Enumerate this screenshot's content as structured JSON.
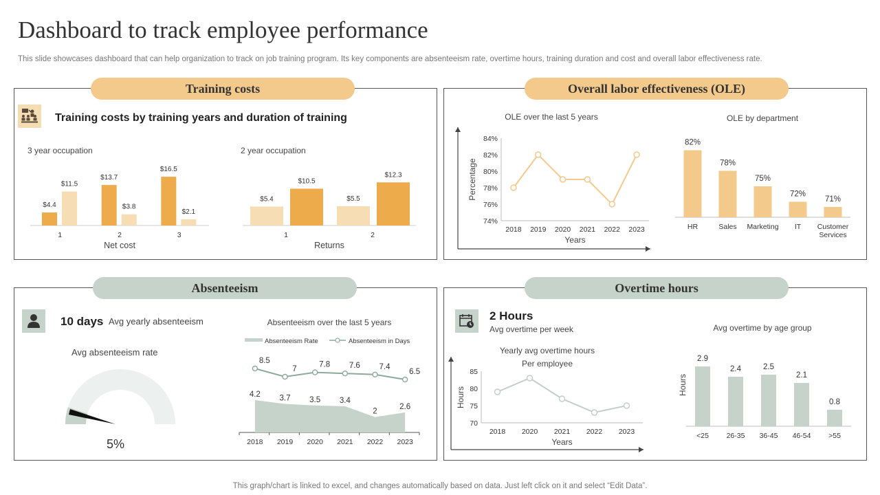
{
  "page": {
    "title": "Dashboard to track employee performance",
    "subtitle": "This slide showcases dashboard that can help organization to track on job training program. Its key components are absenteeism rate, overtime hours, training duration and cost and overall labor effectiveness rate.",
    "footer": "This graph/chart is linked to excel,  and changes automatically based on data. Just left click on it and select “Edit Data”."
  },
  "colors": {
    "orange": "#f4c98c",
    "dark_orange": "#eeab4c",
    "light_orange": "#f6ddb4",
    "green": "#c6d3cb",
    "green_line": "#8fa99a"
  },
  "training": {
    "pill": "Training costs",
    "heading": "Training costs by training years and duration of training",
    "icon": "training-meeting-icon"
  },
  "ole": {
    "pill": "Overall labor effectiveness (OLE)"
  },
  "absenteeism": {
    "pill": "Absenteeism",
    "icon": "person-icon",
    "days_value": "10 days",
    "days_label": "Avg yearly absenteeism",
    "rate_label": "Avg absenteeism rate",
    "rate_value": "5%",
    "rate_fraction": 0.05
  },
  "overtime": {
    "pill": "Overtime hours",
    "icon": "calendar-clock-icon",
    "hours_value": "2 Hours",
    "hours_label": "Avg overtime per week"
  },
  "chart_data": [
    {
      "id": "c1",
      "type": "bar",
      "title": "3 year occupation",
      "xlabel": "Net cost",
      "categories": [
        "1",
        "2",
        "3"
      ],
      "series": [
        {
          "values": [
            4.4,
            13.7,
            16.5
          ],
          "labels": [
            "$4.4",
            "$13.7",
            "$16.5"
          ],
          "color": "#eeab4c"
        },
        {
          "values": [
            11.5,
            3.8,
            2.1
          ],
          "labels": [
            "$11.5",
            "$3.8",
            "$2.1"
          ],
          "color": "#f6ddb4"
        }
      ]
    },
    {
      "id": "c2",
      "type": "bar",
      "title": "2 year occupation",
      "xlabel": "Returns",
      "categories": [
        "1",
        "2"
      ],
      "series": [
        {
          "values": [
            5.4,
            5.5
          ],
          "labels": [
            "$5.4",
            "$5.5"
          ],
          "color": "#f6ddb4"
        },
        {
          "values": [
            10.5,
            12.3
          ],
          "labels": [
            "$10.5",
            "$12.3"
          ],
          "color": "#eeab4c"
        }
      ]
    },
    {
      "id": "c3",
      "type": "line",
      "title": "OLE over  the last 5 years",
      "xlabel": "Years",
      "ylabel": "Percentage",
      "x": [
        "2018",
        "2019",
        "2020",
        "2021",
        "2022",
        "2023"
      ],
      "values": [
        78,
        82,
        79,
        79,
        76,
        82
      ],
      "yticks": [
        "74%",
        "76%",
        "78%",
        "80%",
        "82%",
        "84%"
      ],
      "ylim": [
        74,
        84
      ]
    },
    {
      "id": "c4",
      "type": "bar",
      "title": "OLE by department",
      "categories": [
        "HR",
        "Sales",
        "Marketing",
        "IT",
        "Customer Services"
      ],
      "values": [
        82,
        78,
        75,
        72,
        71
      ],
      "labels": [
        "82%",
        "78%",
        "75%",
        "72%",
        "71%"
      ]
    },
    {
      "id": "c5",
      "type": "area+line",
      "title": "Absenteeism over the last 5 years",
      "x": [
        "2018",
        "2019",
        "2020",
        "2021",
        "2022",
        "2023"
      ],
      "series": [
        {
          "name": "Absenteeism Rate",
          "type": "area",
          "values": [
            4.2,
            3.7,
            3.5,
            3.4,
            2,
            2.6
          ],
          "labels": [
            "4.2",
            "3.7",
            "3.5",
            "3.4",
            "2",
            "2.6"
          ]
        },
        {
          "name": "Absenteeism in Days",
          "type": "line",
          "values": [
            8.5,
            7,
            7.8,
            7.6,
            7.4,
            6.5
          ],
          "labels": [
            "8.5",
            "7",
            "7.8",
            "7.6",
            "7.4",
            "6.5"
          ]
        }
      ]
    },
    {
      "id": "c6",
      "type": "line",
      "title": "Yearly avg  overtime  hours",
      "subtitle": "Per employee",
      "xlabel": "Years",
      "ylabel": "Hours",
      "x": [
        "2018",
        "2020",
        "2021",
        "2022",
        "2023"
      ],
      "values": [
        79,
        83,
        77,
        73,
        75
      ],
      "yticks": [
        "70",
        "75",
        "80",
        "85"
      ],
      "ylim": [
        70,
        85
      ]
    },
    {
      "id": "c7",
      "type": "bar",
      "title": "Avg overtime  by age group",
      "ylabel": "Hours",
      "categories": [
        "<25",
        "26-35",
        "36-45",
        "46-54",
        ">55"
      ],
      "values": [
        2.9,
        2.4,
        2.5,
        2.1,
        0.8
      ],
      "labels": [
        "2.9",
        "2.4",
        "2.5",
        "2.1",
        "0.8"
      ]
    }
  ]
}
